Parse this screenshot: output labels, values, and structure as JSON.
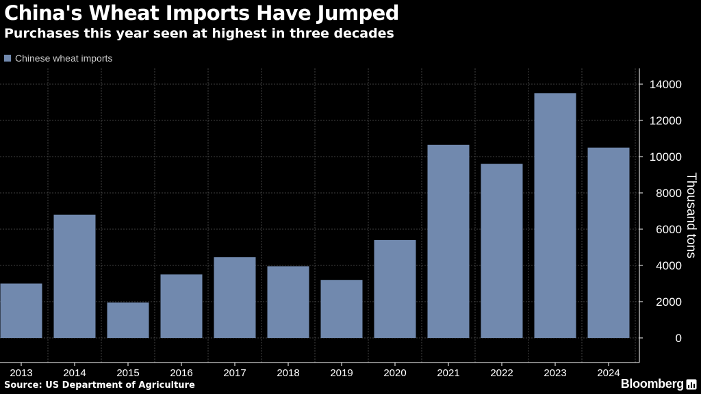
{
  "header": {
    "title": "China's Wheat Imports Have Jumped",
    "subtitle": "Purchases this year seen at highest in three decades"
  },
  "legend": {
    "label": "Chinese wheat imports"
  },
  "footer": {
    "source": "Source: US Department of Agriculture",
    "brand": "Bloomberg"
  },
  "colors": {
    "bar": "#7189ae",
    "background": "#000000",
    "grid": "#555555",
    "text": "#ffffff"
  },
  "chart_data": {
    "type": "bar",
    "title": "China's Wheat Imports Have Jumped",
    "subtitle": "Purchases this year seen at highest in three decades",
    "xlabel": "",
    "ylabel": "Thousand tons",
    "categories": [
      "2013",
      "2014",
      "2015",
      "2016",
      "2017",
      "2018",
      "2019",
      "2020",
      "2021",
      "2022",
      "2023",
      "2024"
    ],
    "series": [
      {
        "name": "Chinese wheat imports",
        "values": [
          3000,
          6800,
          1950,
          3500,
          4450,
          3950,
          3200,
          5400,
          10650,
          9600,
          13500,
          10500
        ]
      }
    ],
    "yticks": [
      0,
      2000,
      4000,
      6000,
      8000,
      10000,
      12000,
      14000
    ],
    "ylim": [
      -1300,
      15000
    ],
    "grid": true,
    "yaxis_position": "right",
    "legend_position": "top-left"
  }
}
